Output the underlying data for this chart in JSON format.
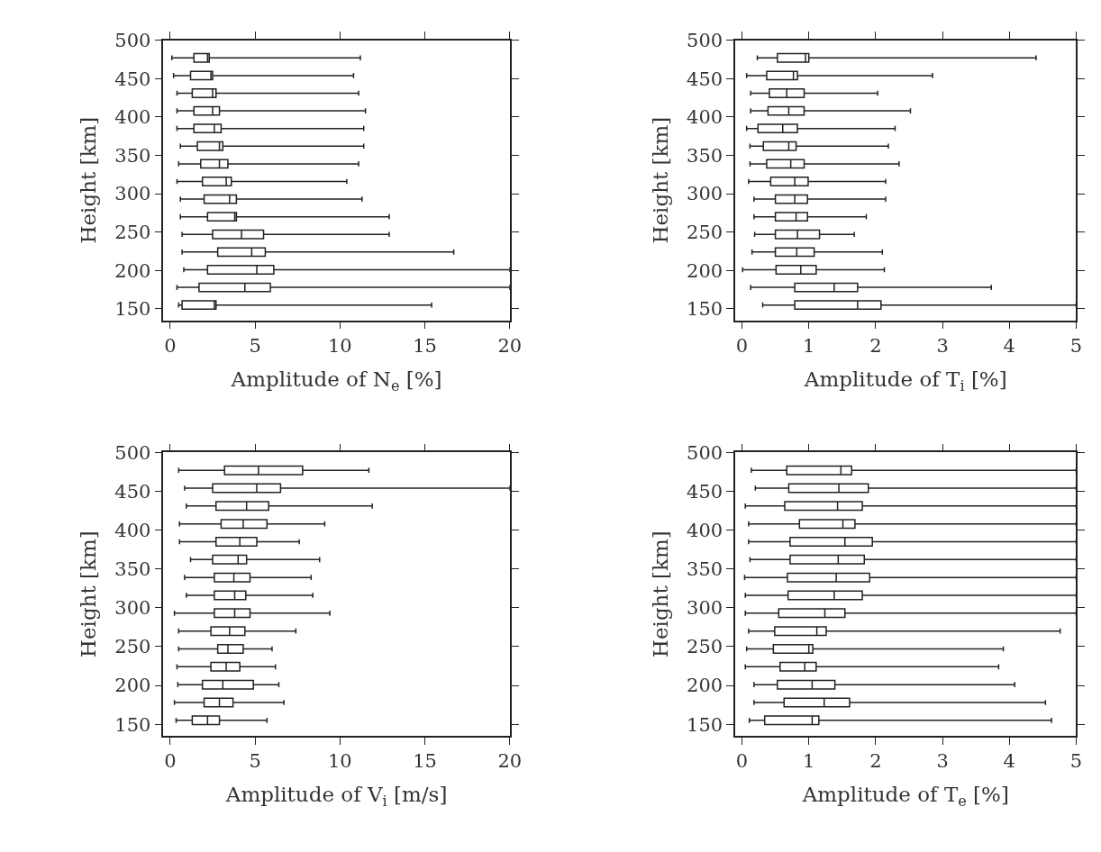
{
  "chart_data": [
    {
      "type": "box",
      "orientation": "horizontal",
      "xlabel": "Amplitude of N$_{e}$ [%]",
      "ylabel": "Height [km]",
      "x": [
        477,
        454,
        431,
        408,
        385,
        362,
        339,
        316,
        293,
        270,
        247,
        224,
        201,
        178,
        155
      ],
      "boxes": [
        {
          "low": 0.1,
          "q1": 1.4,
          "median": 2.2,
          "q3": 2.3,
          "high": 11.2
        },
        {
          "low": 0.2,
          "q1": 1.2,
          "median": 2.4,
          "q3": 2.5,
          "high": 10.8
        },
        {
          "low": 0.4,
          "q1": 1.3,
          "median": 2.5,
          "q3": 2.7,
          "high": 11.1
        },
        {
          "low": 0.4,
          "q1": 1.4,
          "median": 2.5,
          "q3": 2.9,
          "high": 11.5
        },
        {
          "low": 0.4,
          "q1": 1.4,
          "median": 2.6,
          "q3": 3.0,
          "high": 11.4
        },
        {
          "low": 0.6,
          "q1": 1.6,
          "median": 2.9,
          "q3": 3.1,
          "high": 11.4
        },
        {
          "low": 0.5,
          "q1": 1.8,
          "median": 2.9,
          "q3": 3.4,
          "high": 11.1
        },
        {
          "low": 0.4,
          "q1": 1.9,
          "median": 3.3,
          "q3": 3.6,
          "high": 10.4
        },
        {
          "low": 0.6,
          "q1": 2.0,
          "median": 3.5,
          "q3": 3.9,
          "high": 11.3
        },
        {
          "low": 0.6,
          "q1": 2.2,
          "median": 3.8,
          "q3": 3.9,
          "high": 12.9
        },
        {
          "low": 0.7,
          "q1": 2.5,
          "median": 4.2,
          "q3": 5.5,
          "high": 12.9
        },
        {
          "low": 0.7,
          "q1": 2.8,
          "median": 4.8,
          "q3": 5.6,
          "high": 16.7
        },
        {
          "low": 0.8,
          "q1": 2.2,
          "median": 5.1,
          "q3": 6.1,
          "high": 20
        },
        {
          "low": 0.4,
          "q1": 1.7,
          "median": 4.4,
          "q3": 5.9,
          "high": 20
        },
        {
          "low": 0.5,
          "q1": 0.7,
          "median": 2.6,
          "q3": 2.7,
          "high": 15.4
        }
      ],
      "xlim": [
        -0.4,
        20
      ],
      "xticks": [
        0,
        5,
        10,
        15,
        20
      ],
      "ylim": [
        135,
        500
      ],
      "yticks": [
        150,
        200,
        250,
        300,
        350,
        400,
        450,
        500
      ]
    },
    {
      "type": "box",
      "orientation": "horizontal",
      "xlabel": "Amplitude of T$_{i}$ [%]",
      "ylabel": "Height [km]",
      "x": [
        477,
        454,
        431,
        408,
        385,
        362,
        339,
        316,
        293,
        270,
        247,
        224,
        201,
        178,
        155
      ],
      "boxes": [
        {
          "low": 0.23,
          "q1": 0.53,
          "median": 0.95,
          "q3": 1.0,
          "high": 4.4
        },
        {
          "low": 0.07,
          "q1": 0.37,
          "median": 0.77,
          "q3": 0.83,
          "high": 2.85
        },
        {
          "low": 0.13,
          "q1": 0.41,
          "median": 0.67,
          "q3": 0.93,
          "high": 2.03
        },
        {
          "low": 0.13,
          "q1": 0.39,
          "median": 0.7,
          "q3": 0.93,
          "high": 2.52
        },
        {
          "low": 0.07,
          "q1": 0.24,
          "median": 0.61,
          "q3": 0.83,
          "high": 2.29
        },
        {
          "low": 0.12,
          "q1": 0.32,
          "median": 0.7,
          "q3": 0.81,
          "high": 2.19
        },
        {
          "low": 0.12,
          "q1": 0.37,
          "median": 0.73,
          "q3": 0.93,
          "high": 2.35
        },
        {
          "low": 0.1,
          "q1": 0.43,
          "median": 0.79,
          "q3": 0.99,
          "high": 2.15
        },
        {
          "low": 0.18,
          "q1": 0.5,
          "median": 0.79,
          "q3": 0.98,
          "high": 2.15
        },
        {
          "low": 0.18,
          "q1": 0.5,
          "median": 0.81,
          "q3": 0.98,
          "high": 1.86
        },
        {
          "low": 0.19,
          "q1": 0.5,
          "median": 0.83,
          "q3": 1.16,
          "high": 1.68
        },
        {
          "low": 0.15,
          "q1": 0.5,
          "median": 0.82,
          "q3": 1.08,
          "high": 2.1
        },
        {
          "low": 0.01,
          "q1": 0.51,
          "median": 0.88,
          "q3": 1.11,
          "high": 2.13
        },
        {
          "low": 0.13,
          "q1": 0.79,
          "median": 1.38,
          "q3": 1.73,
          "high": 3.73
        },
        {
          "low": 0.31,
          "q1": 0.79,
          "median": 1.73,
          "q3": 2.08,
          "high": 5
        }
      ],
      "xlim": [
        -0.1,
        5
      ],
      "xticks": [
        0,
        1,
        2,
        3,
        4,
        5
      ],
      "ylim": [
        135,
        500
      ],
      "yticks": [
        150,
        200,
        250,
        300,
        350,
        400,
        450,
        500
      ]
    },
    {
      "type": "box",
      "orientation": "horizontal",
      "xlabel": "Amplitude of V$_{i}$ [m/s]",
      "ylabel": "Height [km]",
      "x": [
        477,
        454,
        431,
        408,
        385,
        362,
        339,
        316,
        293,
        270,
        247,
        224,
        201,
        178,
        155
      ],
      "boxes": [
        {
          "low": 0.5,
          "q1": 3.2,
          "median": 5.2,
          "q3": 7.8,
          "high": 11.7
        },
        {
          "low": 0.85,
          "q1": 2.5,
          "median": 5.1,
          "q3": 6.5,
          "high": 20
        },
        {
          "low": 0.95,
          "q1": 2.7,
          "median": 4.5,
          "q3": 5.8,
          "high": 11.9
        },
        {
          "low": 0.55,
          "q1": 3.0,
          "median": 4.3,
          "q3": 5.7,
          "high": 9.1
        },
        {
          "low": 0.55,
          "q1": 2.7,
          "median": 4.1,
          "q3": 5.1,
          "high": 7.6
        },
        {
          "low": 1.2,
          "q1": 2.5,
          "median": 4.0,
          "q3": 4.5,
          "high": 8.8
        },
        {
          "low": 0.85,
          "q1": 2.6,
          "median": 3.75,
          "q3": 4.7,
          "high": 8.3
        },
        {
          "low": 0.95,
          "q1": 2.6,
          "median": 3.8,
          "q3": 4.45,
          "high": 8.4
        },
        {
          "low": 0.25,
          "q1": 2.6,
          "median": 3.8,
          "q3": 4.7,
          "high": 9.4
        },
        {
          "low": 0.5,
          "q1": 2.4,
          "median": 3.5,
          "q3": 4.4,
          "high": 7.4
        },
        {
          "low": 0.5,
          "q1": 2.8,
          "median": 3.4,
          "q3": 4.3,
          "high": 6.0
        },
        {
          "low": 0.4,
          "q1": 2.4,
          "median": 3.3,
          "q3": 4.1,
          "high": 6.2
        },
        {
          "low": 0.45,
          "q1": 1.9,
          "median": 3.1,
          "q3": 4.9,
          "high": 6.4
        },
        {
          "low": 0.25,
          "q1": 2.0,
          "median": 2.9,
          "q3": 3.7,
          "high": 6.7
        },
        {
          "low": 0.35,
          "q1": 1.3,
          "median": 2.2,
          "q3": 2.9,
          "high": 5.7
        }
      ],
      "xlim": [
        -0.4,
        20
      ],
      "xticks": [
        0,
        5,
        10,
        15,
        20
      ],
      "ylim": [
        135,
        500
      ],
      "yticks": [
        150,
        200,
        250,
        300,
        350,
        400,
        450,
        500
      ]
    },
    {
      "type": "box",
      "orientation": "horizontal",
      "xlabel": "Amplitude of T$_{e}$ [%]",
      "ylabel": "Height [km]",
      "x": [
        477,
        454,
        431,
        408,
        385,
        362,
        339,
        316,
        293,
        270,
        247,
        224,
        201,
        178,
        155
      ],
      "boxes": [
        {
          "low": 0.14,
          "q1": 0.67,
          "median": 1.48,
          "q3": 1.64,
          "high": 5
        },
        {
          "low": 0.2,
          "q1": 0.7,
          "median": 1.45,
          "q3": 1.89,
          "high": 5
        },
        {
          "low": 0.05,
          "q1": 0.64,
          "median": 1.43,
          "q3": 1.8,
          "high": 5
        },
        {
          "low": 0.1,
          "q1": 0.86,
          "median": 1.51,
          "q3": 1.69,
          "high": 5
        },
        {
          "low": 0.1,
          "q1": 0.72,
          "median": 1.54,
          "q3": 1.95,
          "high": 5
        },
        {
          "low": 0.12,
          "q1": 0.72,
          "median": 1.44,
          "q3": 1.83,
          "high": 5
        },
        {
          "low": 0.04,
          "q1": 0.68,
          "median": 1.41,
          "q3": 1.91,
          "high": 5
        },
        {
          "low": 0.05,
          "q1": 0.69,
          "median": 1.38,
          "q3": 1.8,
          "high": 5
        },
        {
          "low": 0.05,
          "q1": 0.55,
          "median": 1.24,
          "q3": 1.54,
          "high": 5
        },
        {
          "low": 0.1,
          "q1": 0.49,
          "median": 1.12,
          "q3": 1.26,
          "high": 4.76
        },
        {
          "low": 0.07,
          "q1": 0.47,
          "median": 1.0,
          "q3": 1.06,
          "high": 3.91
        },
        {
          "low": 0.05,
          "q1": 0.57,
          "median": 0.94,
          "q3": 1.11,
          "high": 3.84
        },
        {
          "low": 0.18,
          "q1": 0.53,
          "median": 1.05,
          "q3": 1.39,
          "high": 4.08
        },
        {
          "low": 0.18,
          "q1": 0.63,
          "median": 1.23,
          "q3": 1.61,
          "high": 4.54
        },
        {
          "low": 0.11,
          "q1": 0.34,
          "median": 1.05,
          "q3": 1.15,
          "high": 4.63
        }
      ],
      "xlim": [
        -0.1,
        5
      ],
      "xticks": [
        0,
        1,
        2,
        3,
        4,
        5
      ],
      "ylim": [
        135,
        500
      ],
      "yticks": [
        150,
        200,
        250,
        300,
        350,
        400,
        450,
        500
      ]
    }
  ]
}
